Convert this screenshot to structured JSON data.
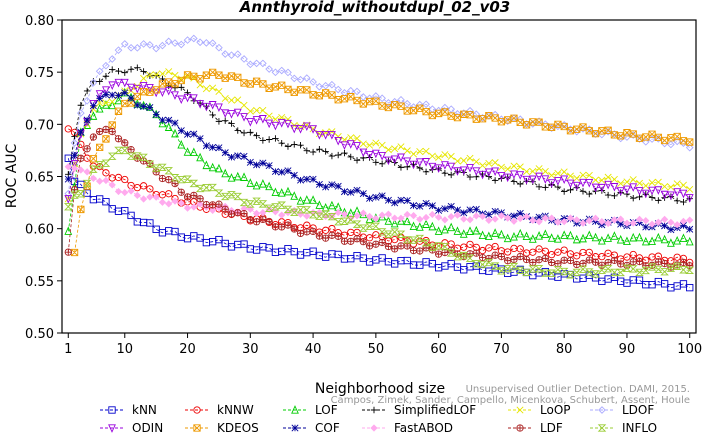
{
  "chart_data": {
    "type": "line",
    "title": "Annthyroid_withoutdupl_02_v03",
    "xlabel": "Neighborhood size",
    "ylabel": "ROC AUC",
    "xlim": [
      0,
      101
    ],
    "ylim": [
      0.5,
      0.8
    ],
    "x_ticks": [
      "1",
      "10",
      "20",
      "30",
      "40",
      "50",
      "60",
      "70",
      "80",
      "90",
      "100"
    ],
    "y_ticks": [
      "0.50",
      "0.55",
      "0.60",
      "0.65",
      "0.70",
      "0.75",
      "0.80"
    ],
    "grid": false,
    "legend_position": "bottom",
    "watermark": "Unsupervised Outlier Detection. DAMI, 2015.\nCampos, Zimek, Sander, Campello, Micenkova, Schubert, Assent, Houle",
    "series": [
      {
        "name": "kNN",
        "color": "#0000cc",
        "marker": "square",
        "points": [
          [
            1,
            0.67
          ],
          [
            2,
            0.645
          ],
          [
            3,
            0.64
          ],
          [
            5,
            0.63
          ],
          [
            10,
            0.615
          ],
          [
            15,
            0.6
          ],
          [
            20,
            0.592
          ],
          [
            30,
            0.582
          ],
          [
            40,
            0.576
          ],
          [
            50,
            0.57
          ],
          [
            60,
            0.565
          ],
          [
            70,
            0.56
          ],
          [
            80,
            0.555
          ],
          [
            90,
            0.55
          ],
          [
            100,
            0.544
          ]
        ]
      },
      {
        "name": "kNNW",
        "color": "#ee0000",
        "marker": "circle",
        "points": [
          [
            1,
            0.697
          ],
          [
            2,
            0.69
          ],
          [
            3,
            0.68
          ],
          [
            5,
            0.66
          ],
          [
            10,
            0.645
          ],
          [
            15,
            0.635
          ],
          [
            20,
            0.625
          ],
          [
            30,
            0.61
          ],
          [
            40,
            0.6
          ],
          [
            50,
            0.592
          ],
          [
            60,
            0.585
          ],
          [
            70,
            0.58
          ],
          [
            80,
            0.577
          ],
          [
            90,
            0.573
          ],
          [
            100,
            0.57
          ]
        ]
      },
      {
        "name": "LOF",
        "color": "#00cc00",
        "marker": "triangle-up",
        "points": [
          [
            1,
            0.6
          ],
          [
            2,
            0.64
          ],
          [
            3,
            0.69
          ],
          [
            5,
            0.71
          ],
          [
            8,
            0.72
          ],
          [
            10,
            0.728
          ],
          [
            12,
            0.722
          ],
          [
            15,
            0.71
          ],
          [
            20,
            0.675
          ],
          [
            25,
            0.655
          ],
          [
            30,
            0.645
          ],
          [
            40,
            0.625
          ],
          [
            50,
            0.61
          ],
          [
            60,
            0.6
          ],
          [
            70,
            0.593
          ],
          [
            80,
            0.592
          ],
          [
            90,
            0.59
          ],
          [
            100,
            0.588
          ]
        ]
      },
      {
        "name": "SimplifiedLOF",
        "color": "#000000",
        "marker": "plus",
        "points": [
          [
            1,
            0.65
          ],
          [
            2,
            0.69
          ],
          [
            3,
            0.72
          ],
          [
            5,
            0.74
          ],
          [
            8,
            0.75
          ],
          [
            10,
            0.752
          ],
          [
            13,
            0.752
          ],
          [
            15,
            0.745
          ],
          [
            20,
            0.73
          ],
          [
            25,
            0.705
          ],
          [
            30,
            0.69
          ],
          [
            40,
            0.675
          ],
          [
            50,
            0.665
          ],
          [
            60,
            0.655
          ],
          [
            70,
            0.648
          ],
          [
            80,
            0.638
          ],
          [
            90,
            0.632
          ],
          [
            100,
            0.627
          ]
        ]
      },
      {
        "name": "LoOP",
        "color": "#e6e600",
        "marker": "cross",
        "points": [
          [
            1,
            0.63
          ],
          [
            2,
            0.66
          ],
          [
            3,
            0.69
          ],
          [
            5,
            0.715
          ],
          [
            10,
            0.73
          ],
          [
            15,
            0.75
          ],
          [
            20,
            0.745
          ],
          [
            25,
            0.73
          ],
          [
            30,
            0.715
          ],
          [
            40,
            0.695
          ],
          [
            50,
            0.68
          ],
          [
            60,
            0.67
          ],
          [
            70,
            0.66
          ],
          [
            80,
            0.652
          ],
          [
            90,
            0.645
          ],
          [
            100,
            0.64
          ]
        ]
      },
      {
        "name": "LDOF",
        "color": "#aaaaff",
        "marker": "diamond",
        "points": [
          [
            1,
            0.635
          ],
          [
            2,
            0.68
          ],
          [
            3,
            0.71
          ],
          [
            5,
            0.74
          ],
          [
            8,
            0.765
          ],
          [
            10,
            0.775
          ],
          [
            15,
            0.775
          ],
          [
            20,
            0.78
          ],
          [
            23,
            0.78
          ],
          [
            25,
            0.772
          ],
          [
            30,
            0.76
          ],
          [
            40,
            0.74
          ],
          [
            50,
            0.725
          ],
          [
            60,
            0.715
          ],
          [
            70,
            0.706
          ],
          [
            80,
            0.697
          ],
          [
            90,
            0.688
          ],
          [
            100,
            0.68
          ]
        ]
      },
      {
        "name": "ODIN",
        "color": "#9900dd",
        "marker": "triangle-down",
        "points": [
          [
            1,
            0.63
          ],
          [
            2,
            0.66
          ],
          [
            3,
            0.69
          ],
          [
            5,
            0.72
          ],
          [
            8,
            0.74
          ],
          [
            10,
            0.738
          ],
          [
            15,
            0.733
          ],
          [
            20,
            0.725
          ],
          [
            30,
            0.705
          ],
          [
            40,
            0.695
          ],
          [
            50,
            0.67
          ],
          [
            60,
            0.66
          ],
          [
            70,
            0.652
          ],
          [
            80,
            0.645
          ],
          [
            90,
            0.638
          ],
          [
            100,
            0.632
          ]
        ]
      },
      {
        "name": "KDEOS",
        "color": "#ee9900",
        "marker": "square-x",
        "points": [
          [
            2,
            0.575
          ],
          [
            3,
            0.62
          ],
          [
            5,
            0.665
          ],
          [
            8,
            0.7
          ],
          [
            10,
            0.72
          ],
          [
            15,
            0.735
          ],
          [
            20,
            0.745
          ],
          [
            25,
            0.748
          ],
          [
            30,
            0.74
          ],
          [
            40,
            0.73
          ],
          [
            50,
            0.72
          ],
          [
            60,
            0.71
          ],
          [
            70,
            0.705
          ],
          [
            80,
            0.697
          ],
          [
            90,
            0.69
          ],
          [
            100,
            0.685
          ]
        ]
      },
      {
        "name": "COF",
        "color": "#000099",
        "marker": "asterisk",
        "points": [
          [
            1,
            0.65
          ],
          [
            2,
            0.67
          ],
          [
            3,
            0.69
          ],
          [
            5,
            0.72
          ],
          [
            8,
            0.73
          ],
          [
            10,
            0.728
          ],
          [
            15,
            0.71
          ],
          [
            20,
            0.692
          ],
          [
            25,
            0.675
          ],
          [
            30,
            0.665
          ],
          [
            40,
            0.645
          ],
          [
            50,
            0.63
          ],
          [
            60,
            0.62
          ],
          [
            70,
            0.614
          ],
          [
            80,
            0.608
          ],
          [
            90,
            0.605
          ],
          [
            100,
            0.6
          ]
        ]
      },
      {
        "name": "FastABOD",
        "color": "#ffaaee",
        "marker": "diamond-filled",
        "points": [
          [
            1,
            0.66
          ],
          [
            2,
            0.66
          ],
          [
            3,
            0.655
          ],
          [
            5,
            0.65
          ],
          [
            10,
            0.635
          ],
          [
            15,
            0.628
          ],
          [
            20,
            0.622
          ],
          [
            30,
            0.617
          ],
          [
            40,
            0.614
          ],
          [
            50,
            0.612
          ],
          [
            60,
            0.611
          ],
          [
            70,
            0.61
          ],
          [
            80,
            0.608
          ],
          [
            90,
            0.607
          ],
          [
            100,
            0.606
          ]
        ]
      },
      {
        "name": "LDF",
        "color": "#aa2222",
        "marker": "circle-plus",
        "points": [
          [
            1,
            0.58
          ],
          [
            2,
            0.637
          ],
          [
            3,
            0.665
          ],
          [
            5,
            0.69
          ],
          [
            8,
            0.695
          ],
          [
            10,
            0.68
          ],
          [
            15,
            0.655
          ],
          [
            20,
            0.632
          ],
          [
            30,
            0.61
          ],
          [
            40,
            0.595
          ],
          [
            50,
            0.585
          ],
          [
            60,
            0.578
          ],
          [
            70,
            0.572
          ],
          [
            80,
            0.568
          ],
          [
            90,
            0.567
          ],
          [
            100,
            0.565
          ]
        ]
      },
      {
        "name": "INFLO",
        "color": "#99cc33",
        "marker": "hourglass",
        "points": [
          [
            1,
            0.62
          ],
          [
            2,
            0.63
          ],
          [
            3,
            0.635
          ],
          [
            5,
            0.655
          ],
          [
            8,
            0.67
          ],
          [
            10,
            0.675
          ],
          [
            15,
            0.66
          ],
          [
            20,
            0.645
          ],
          [
            30,
            0.625
          ],
          [
            40,
            0.615
          ],
          [
            50,
            0.6
          ],
          [
            60,
            0.583
          ],
          [
            65,
            0.57
          ],
          [
            70,
            0.562
          ],
          [
            80,
            0.558
          ],
          [
            90,
            0.56
          ],
          [
            100,
            0.562
          ]
        ]
      }
    ]
  }
}
